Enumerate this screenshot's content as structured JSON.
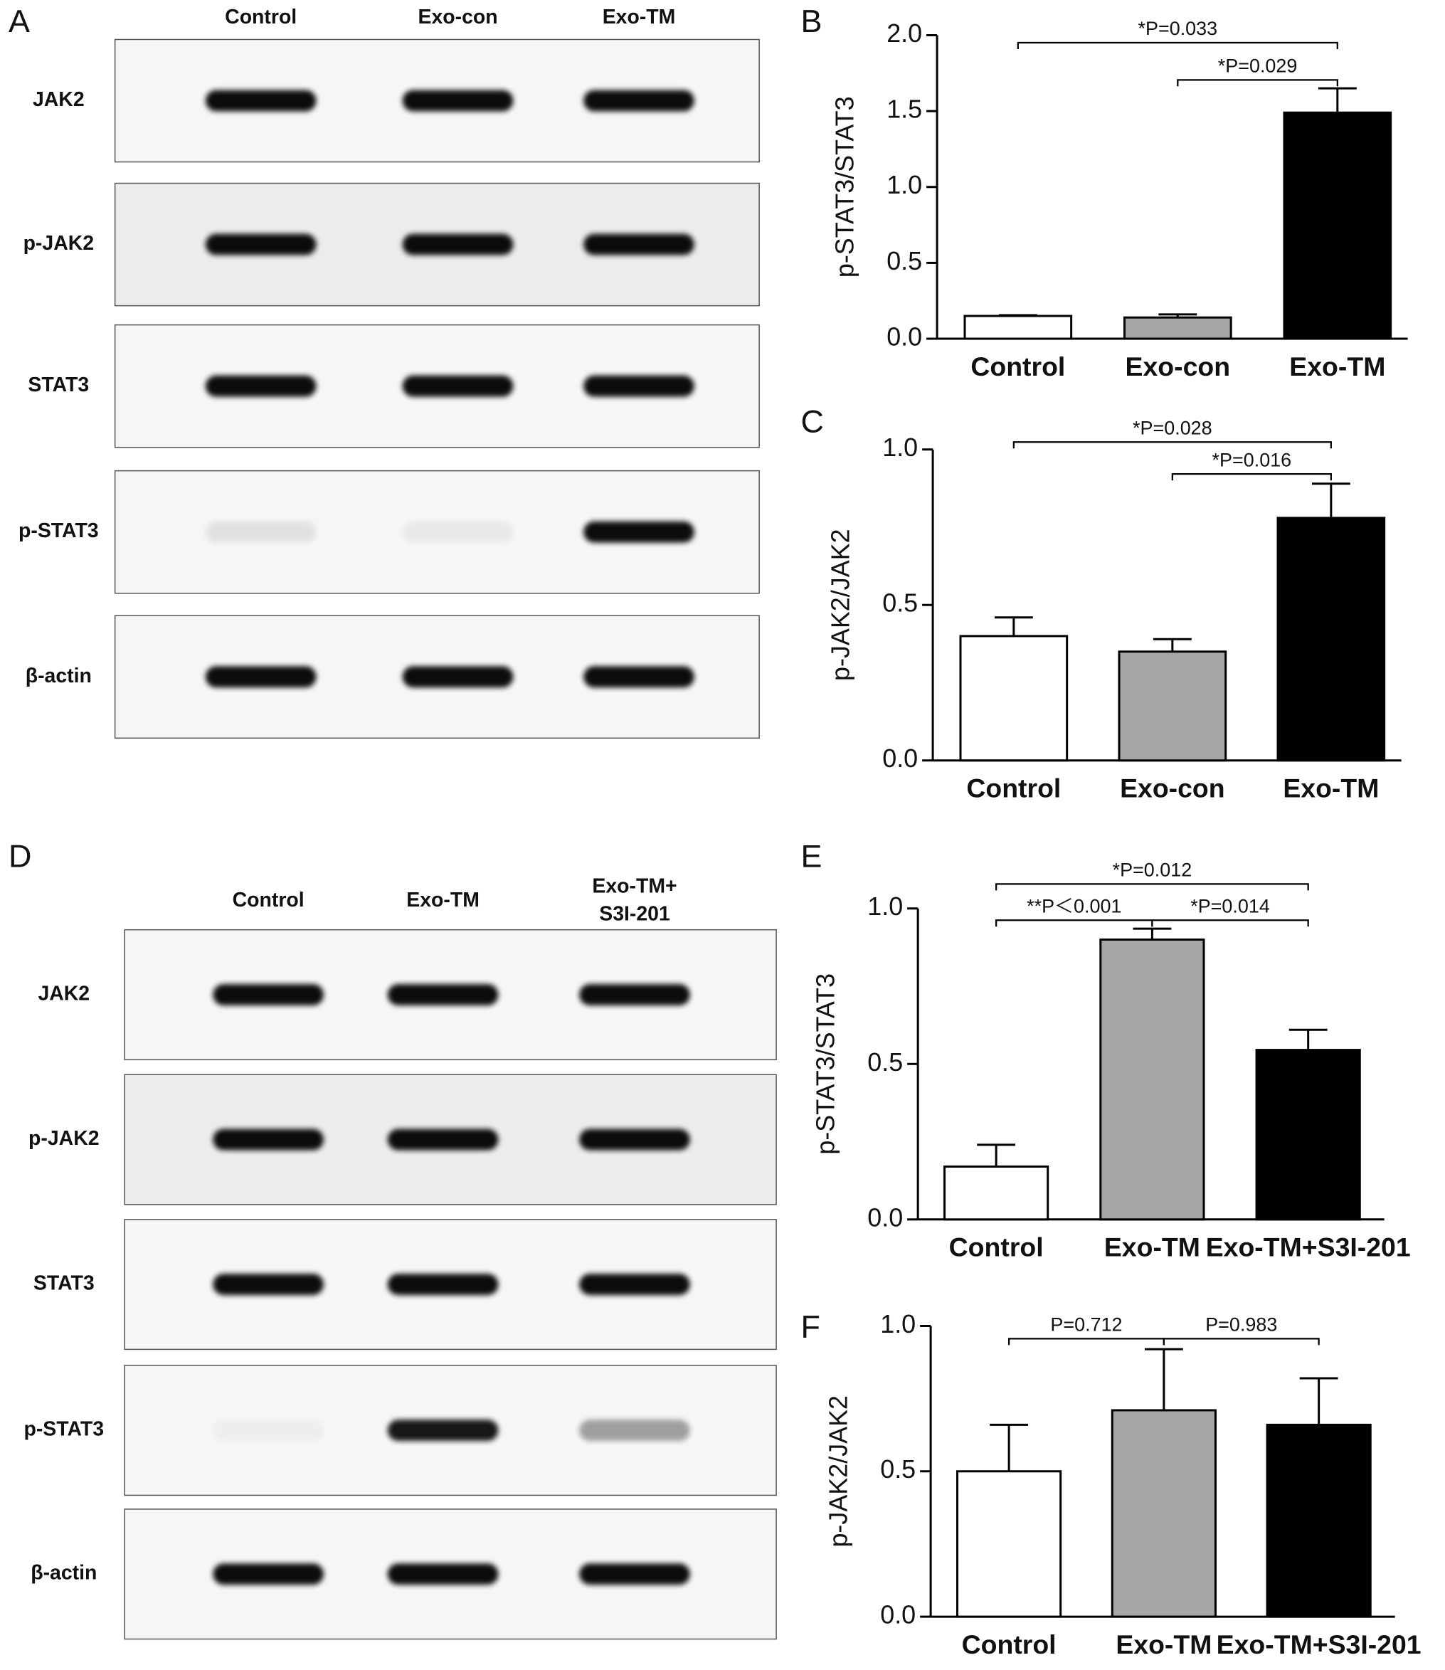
{
  "blots": [
    {
      "panel": "A",
      "lanes": [
        [
          "Control"
        ],
        [
          "Exo-con"
        ],
        [
          "Exo-TM"
        ]
      ],
      "rows": [
        "JAK2",
        "p-JAK2",
        "STAT3",
        "p-STAT3",
        "β-actin"
      ]
    },
    {
      "panel": "D",
      "lanes": [
        [
          "Control"
        ],
        [
          "Exo-TM"
        ],
        [
          "Exo-TM+",
          "S3I-201"
        ]
      ],
      "rows": [
        "JAK2",
        "p-JAK2",
        "STAT3",
        "p-STAT3",
        "β-actin"
      ]
    }
  ],
  "chart_data": [
    {
      "type": "bar",
      "panel": "B",
      "y_label": "p-STAT3/STAT3",
      "categories": [
        "Control",
        "Exo-con",
        "Exo-TM"
      ],
      "values": [
        0.15,
        0.14,
        1.49
      ],
      "errors": [
        0.005,
        0.02,
        0.16
      ],
      "colors": [
        "#ffffff",
        "#a6a6a6",
        "#000000"
      ],
      "ylim": [
        0,
        2
      ],
      "yticks": [
        {
          "value": 0,
          "label": "0.0"
        },
        {
          "value": 0.5,
          "label": "0.5"
        },
        {
          "value": 1,
          "label": "1.0"
        },
        {
          "value": 1.5,
          "label": "1.5"
        },
        {
          "value": 2,
          "label": "2.0"
        }
      ],
      "annotations": [
        {
          "text": "*P=0.033",
          "between": [
            "Control",
            "Exo-TM"
          ]
        },
        {
          "text": "*P=0.029",
          "between": [
            "Exo-con",
            "Exo-TM"
          ]
        }
      ]
    },
    {
      "type": "bar",
      "panel": "C",
      "y_label": "p-JAK2/JAK2",
      "categories": [
        "Control",
        "Exo-con",
        "Exo-TM"
      ],
      "values": [
        0.4,
        0.35,
        0.78
      ],
      "errors": [
        0.06,
        0.04,
        0.11
      ],
      "colors": [
        "#ffffff",
        "#a6a6a6",
        "#000000"
      ],
      "ylim": [
        0,
        1
      ],
      "yticks": [
        {
          "value": 0,
          "label": "0.0"
        },
        {
          "value": 0.5,
          "label": "0.5"
        },
        {
          "value": 1,
          "label": "1.0"
        }
      ],
      "annotations": [
        {
          "text": "*P=0.028",
          "between": [
            "Control",
            "Exo-TM"
          ]
        },
        {
          "text": "*P=0.016",
          "between": [
            "Exo-con",
            "Exo-TM"
          ]
        }
      ]
    },
    {
      "type": "bar",
      "panel": "E",
      "y_label": "p-STAT3/STAT3",
      "categories": [
        "Control",
        "Exo-TM",
        "Exo-TM+S3I-201"
      ],
      "values": [
        0.17,
        0.9,
        0.545
      ],
      "errors": [
        0.07,
        0.035,
        0.065
      ],
      "colors": [
        "#ffffff",
        "#a6a6a6",
        "#000000"
      ],
      "ylim": [
        0,
        1
      ],
      "yticks": [
        {
          "value": 0,
          "label": "0.0"
        },
        {
          "value": 0.5,
          "label": "0.5"
        },
        {
          "value": 1,
          "label": "1.0"
        }
      ],
      "annotations": [
        {
          "text": "*P=0.012",
          "between": [
            "Control",
            "Exo-TM+S3I-201"
          ]
        },
        {
          "text": "**P＜0.001",
          "between": [
            "Control",
            "Exo-TM"
          ]
        },
        {
          "text": "*P=0.014",
          "between": [
            "Exo-TM",
            "Exo-TM+S3I-201"
          ]
        }
      ]
    },
    {
      "type": "bar",
      "panel": "F",
      "y_label": "p-JAK2/JAK2",
      "categories": [
        "Control",
        "Exo-TM",
        "Exo-TM+S3I-201"
      ],
      "values": [
        0.5,
        0.71,
        0.66
      ],
      "errors": [
        0.16,
        0.21,
        0.16
      ],
      "colors": [
        "#ffffff",
        "#a6a6a6",
        "#000000"
      ],
      "ylim": [
        0,
        1
      ],
      "yticks": [
        {
          "value": 0,
          "label": "0.0"
        },
        {
          "value": 0.5,
          "label": "0.5"
        },
        {
          "value": 1,
          "label": "1.0"
        }
      ],
      "annotations": [
        {
          "text": "P=0.712",
          "between": [
            "Control",
            "Exo-TM"
          ]
        },
        {
          "text": "P=0.983",
          "between": [
            "Exo-TM",
            "Exo-TM+S3I-201"
          ]
        }
      ]
    }
  ]
}
